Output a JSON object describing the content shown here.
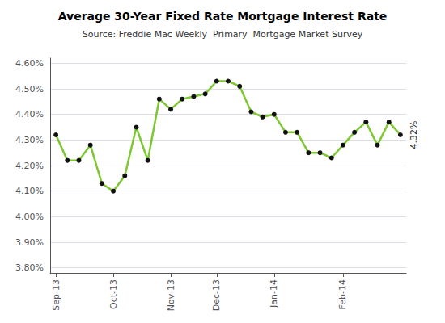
{
  "chart_data": {
    "type": "line",
    "title": "Average 30-Year Fixed Rate Mortgage Interest Rate",
    "subtitle": "Source: Freddie Mac Weekly  Primary  Mortgage Market Survey",
    "categories": [
      "Sep-13",
      null,
      null,
      null,
      null,
      "Oct-13",
      null,
      null,
      null,
      null,
      "Nov-13",
      null,
      null,
      null,
      "Dec-13",
      null,
      null,
      null,
      null,
      "Jan-14",
      null,
      null,
      null,
      null,
      null,
      "Feb-14",
      null,
      null,
      null,
      null,
      null
    ],
    "values": [
      4.32,
      4.22,
      4.22,
      4.28,
      4.13,
      4.1,
      4.16,
      4.35,
      4.22,
      4.46,
      4.42,
      4.46,
      4.47,
      4.48,
      4.53,
      4.53,
      4.51,
      4.41,
      4.39,
      4.4,
      4.33,
      4.33,
      4.25,
      4.25,
      4.23,
      4.28,
      4.33,
      4.37,
      4.28,
      4.37,
      4.32
    ],
    "color": "#7DC832",
    "marker": "circle",
    "marker_color": "#111111",
    "ylim": [
      3.78,
      4.62
    ],
    "yticks": [
      {
        "value": 3.8,
        "label": "3.80%"
      },
      {
        "value": 3.9,
        "label": "3.90%"
      },
      {
        "value": 4.0,
        "label": "4.00%"
      },
      {
        "value": 4.1,
        "label": "4.10%"
      },
      {
        "value": 4.2,
        "label": "4.20%"
      },
      {
        "value": 4.3,
        "label": "4.30%"
      },
      {
        "value": 4.4,
        "label": "4.40%"
      },
      {
        "value": 4.5,
        "label": "4.50%"
      },
      {
        "value": 4.6,
        "label": "4.60%"
      }
    ],
    "grid": true,
    "annotations": [
      {
        "text": "4.32%",
        "x": 30,
        "y": 4.32
      }
    ]
  }
}
